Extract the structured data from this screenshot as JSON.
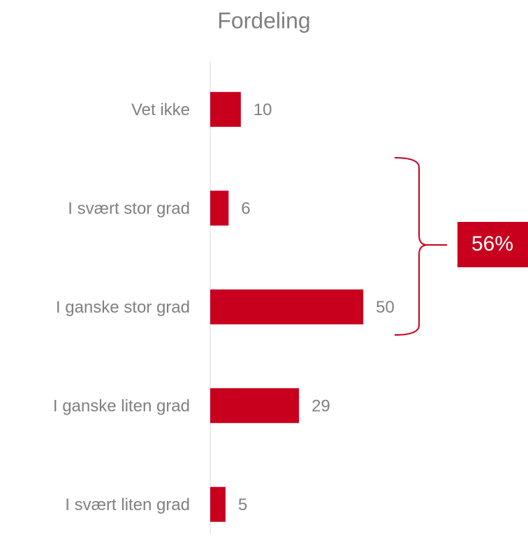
{
  "chart_data": {
    "type": "bar",
    "orientation": "horizontal",
    "title": "Fordeling",
    "categories": [
      "Vet ikke",
      "I svært stor grad",
      "I ganske stor grad",
      "I ganske liten grad",
      "I svært liten grad"
    ],
    "values": [
      10,
      6,
      50,
      29,
      5
    ],
    "color": "#c8001e",
    "xlim": [
      0,
      60
    ],
    "annotation": "56%"
  }
}
